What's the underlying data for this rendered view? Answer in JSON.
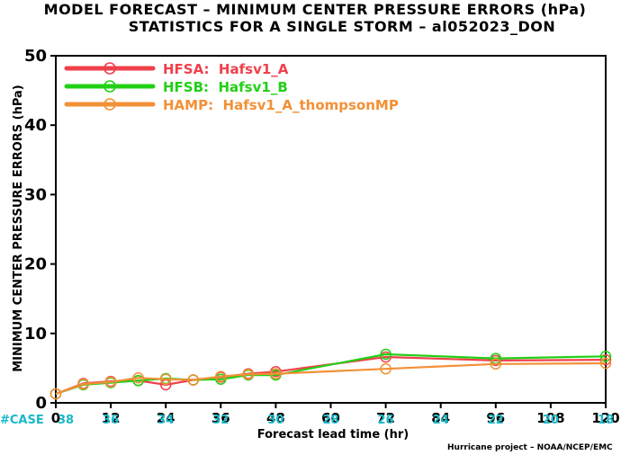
{
  "chart_data": {
    "type": "line",
    "title": "MODEL FORECAST – MINIMUM CENTER PRESSURE ERRORS (hPa)",
    "subtitle": "STATISTICS FOR A SINGLE STORM – al052023_DON",
    "xlabel": "Forecast lead time (hr)",
    "ylabel": "MINIMUM CENTER PRESSURE ERRORS (hPa)",
    "xlim": [
      0,
      120
    ],
    "ylim": [
      0,
      50
    ],
    "xticks": [
      0,
      12,
      24,
      36,
      48,
      60,
      72,
      84,
      96,
      108,
      120
    ],
    "yticks": [
      0,
      10,
      20,
      30,
      40,
      50
    ],
    "grid": false,
    "legend_position": "top-left",
    "case_label": "#CASE",
    "case_x": [
      0,
      12,
      24,
      36,
      48,
      60,
      72,
      84,
      96,
      108,
      120
    ],
    "case_counts": [
      38,
      36,
      34,
      32,
      30,
      28,
      26,
      24,
      22,
      20,
      18
    ],
    "credit": "Hurricane project – NOAA/NCEP/EMC",
    "series": [
      {
        "name": "HFSA:  Hafsv1_A",
        "color": "#f0404a",
        "x": [
          0,
          6,
          12,
          18,
          24,
          30,
          36,
          42,
          48,
          72,
          96,
          120
        ],
        "values": [
          1.3,
          2.8,
          3.1,
          3.2,
          2.6,
          3.3,
          3.7,
          4.2,
          4.5,
          6.6,
          6.1,
          6.2
        ]
      },
      {
        "name": "HFSB:  Hafsv1_B",
        "color": "#22d016",
        "x": [
          0,
          6,
          12,
          18,
          24,
          30,
          36,
          42,
          48,
          72,
          96,
          120
        ],
        "values": [
          1.3,
          2.6,
          2.9,
          3.2,
          3.5,
          3.3,
          3.4,
          4.0,
          4.0,
          7.0,
          6.4,
          6.7
        ]
      },
      {
        "name": "HAMP:  Hafsv1_A_thompsonMP",
        "color": "#f29036",
        "x": [
          0,
          6,
          12,
          18,
          24,
          30,
          36,
          42,
          48,
          72,
          96,
          120
        ],
        "values": [
          1.3,
          2.7,
          3.0,
          3.6,
          3.4,
          3.3,
          3.8,
          4.1,
          4.2,
          4.9,
          5.6,
          5.7
        ]
      }
    ]
  }
}
